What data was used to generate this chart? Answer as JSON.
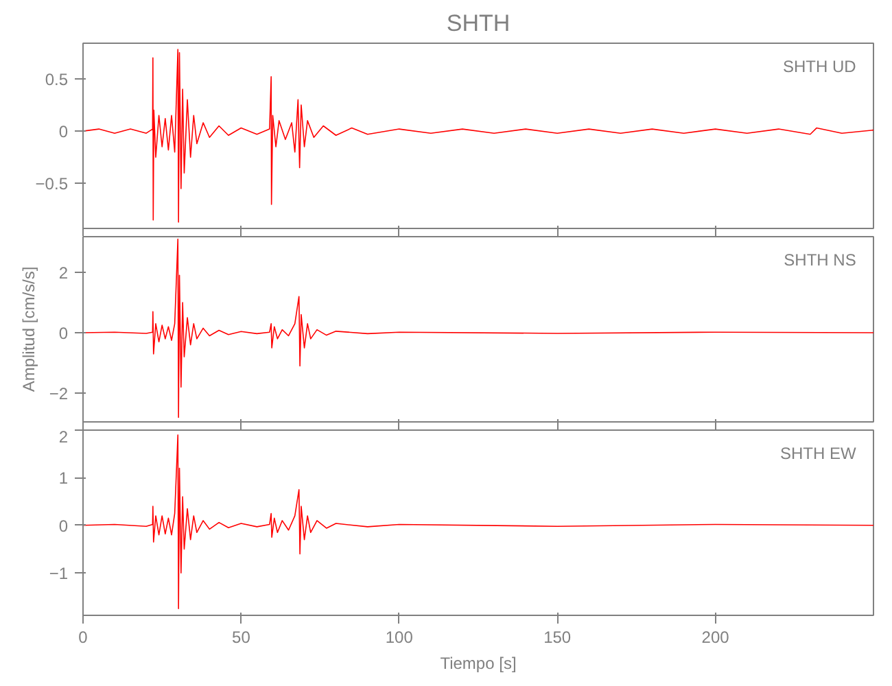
{
  "chart_data": [
    {
      "type": "line",
      "title": "SHTH",
      "annotations": [
        "SHTH   UD"
      ],
      "tick_labels": "y",
      "xlim": [
        0,
        250
      ],
      "xticks": [
        0,
        50,
        100,
        150,
        200
      ],
      "ylim": [
        -0.93,
        0.84
      ],
      "yticks": [
        -0.5,
        0.0,
        0.5
      ],
      "grid": false,
      "x": [
        0,
        5,
        10,
        15,
        20,
        22,
        22.1,
        22.2,
        22.4,
        23,
        24,
        25,
        26,
        27,
        28,
        29,
        30,
        30.2,
        30.5,
        31,
        31.5,
        32,
        33,
        34,
        35,
        36,
        38,
        40,
        43,
        46,
        50,
        55,
        59,
        59.5,
        59.6,
        60,
        61,
        62,
        64,
        66,
        67,
        68,
        68.5,
        69,
        70,
        71,
        73,
        76,
        80,
        85,
        90,
        100,
        110,
        120,
        130,
        140,
        150,
        160,
        170,
        180,
        190,
        200,
        210,
        220,
        230,
        232,
        240,
        250
      ],
      "series": [
        {
          "color": "#ff0000",
          "values": [
            0,
            0.02,
            -0.02,
            0.02,
            -0.02,
            0.02,
            0.7,
            -0.85,
            0.2,
            -0.25,
            0.15,
            -0.15,
            0.12,
            -0.18,
            0.15,
            -0.2,
            0.78,
            -0.87,
            0.75,
            -0.55,
            0.4,
            -0.4,
            0.3,
            -0.25,
            0.15,
            -0.12,
            0.08,
            -0.06,
            0.05,
            -0.04,
            0.03,
            -0.03,
            0.02,
            0.52,
            -0.7,
            0.15,
            -0.15,
            0.1,
            -0.08,
            0.08,
            -0.2,
            0.3,
            -0.35,
            0.25,
            -0.15,
            0.1,
            -0.06,
            0.05,
            -0.04,
            0.03,
            -0.03,
            0.02,
            -0.02,
            0.02,
            -0.02,
            0.02,
            -0.02,
            0.02,
            -0.02,
            0.02,
            -0.02,
            0.02,
            -0.02,
            0.02,
            -0.03,
            0.03,
            -0.02,
            0.01
          ]
        }
      ]
    },
    {
      "type": "line",
      "ylabel": "Amplitud [cm/s/s]",
      "annotations": [
        "SHTH   NS"
      ],
      "tick_labels": "y",
      "xlim": [
        0,
        250
      ],
      "xticks": [
        0,
        50,
        100,
        150,
        200
      ],
      "ylim": [
        -2.95,
        3.18
      ],
      "yticks": [
        -2,
        0,
        2
      ],
      "grid": false,
      "x": [
        0,
        10,
        20,
        22,
        22.1,
        22.3,
        23,
        24,
        25,
        26,
        27,
        28,
        29,
        30,
        30.2,
        30.5,
        31,
        31.5,
        32,
        33,
        34,
        35,
        36,
        38,
        40,
        43,
        46,
        50,
        55,
        59,
        59.5,
        59.7,
        60.5,
        61.5,
        63,
        65,
        67,
        68.3,
        68.6,
        69,
        70,
        71,
        72,
        74,
        77,
        80,
        90,
        100,
        150,
        200,
        250
      ],
      "series": [
        {
          "color": "#ff0000",
          "values": [
            0,
            0.02,
            -0.02,
            0.02,
            0.7,
            -0.7,
            0.3,
            -0.3,
            0.25,
            -0.2,
            0.2,
            -0.25,
            0.3,
            3.1,
            -2.8,
            1.9,
            -1.8,
            1.0,
            -0.8,
            0.5,
            -0.4,
            0.3,
            -0.2,
            0.15,
            -0.1,
            0.08,
            -0.06,
            0.04,
            -0.03,
            0.02,
            0.3,
            -0.5,
            0.2,
            -0.2,
            0.1,
            -0.1,
            0.3,
            1.2,
            -1.1,
            0.6,
            -0.5,
            0.3,
            -0.2,
            0.1,
            -0.08,
            0.05,
            -0.03,
            0.02,
            -0.02,
            0.02,
            0
          ]
        }
      ]
    },
    {
      "type": "line",
      "xlabel": "Tiempo [s]",
      "annotations": [
        "SHTH   EW"
      ],
      "xlim": [
        0,
        250
      ],
      "xticks": [
        0,
        50,
        100,
        150,
        200
      ],
      "ylim": [
        -1.89,
        2
      ],
      "yticks": [
        -1,
        0,
        1,
        2
      ],
      "grid": false,
      "x": [
        0,
        10,
        20,
        22,
        22.1,
        22.3,
        23,
        24,
        25,
        26,
        27,
        28,
        29,
        30,
        30.2,
        30.5,
        31,
        31.5,
        32,
        33,
        34,
        35,
        36,
        38,
        40,
        43,
        46,
        50,
        55,
        59,
        59.5,
        59.7,
        60.5,
        61.5,
        63,
        65,
        67,
        68.3,
        68.6,
        69,
        70,
        71,
        72,
        74,
        77,
        80,
        90,
        100,
        150,
        200,
        250
      ],
      "series": [
        {
          "color": "#ff0000",
          "values": [
            0,
            0.02,
            -0.02,
            0.02,
            0.4,
            -0.35,
            0.2,
            -0.2,
            0.2,
            -0.18,
            0.15,
            -0.2,
            0.25,
            1.9,
            -1.75,
            1.2,
            -1.0,
            0.6,
            -0.5,
            0.35,
            -0.3,
            0.2,
            -0.15,
            0.1,
            -0.08,
            0.06,
            -0.05,
            0.04,
            -0.03,
            0.02,
            0.25,
            -0.25,
            0.15,
            -0.15,
            0.1,
            -0.1,
            0.2,
            0.75,
            -0.6,
            0.4,
            -0.3,
            0.2,
            -0.15,
            0.1,
            -0.06,
            0.04,
            -0.03,
            0.02,
            -0.02,
            0.02,
            0
          ]
        }
      ]
    }
  ]
}
